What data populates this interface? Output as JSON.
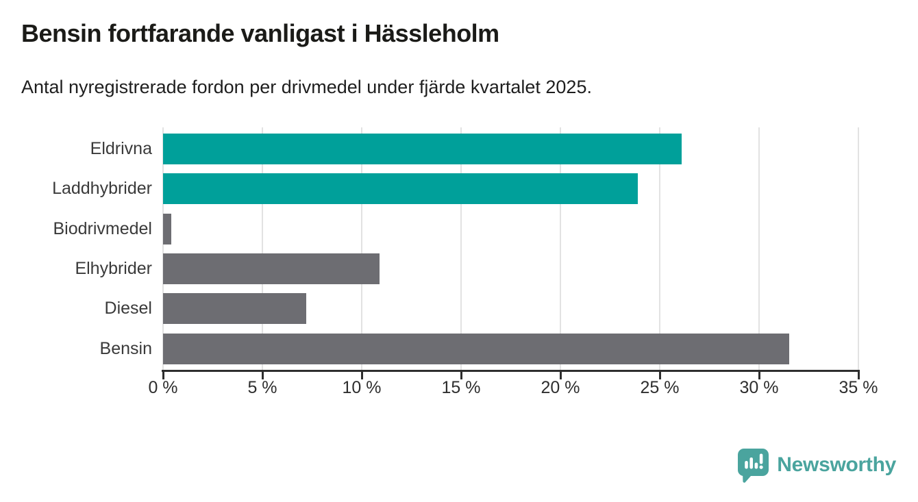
{
  "title": "Bensin fortfarande vanligast i Hässleholm",
  "subtitle": "Antal nyregistrerade fordon per drivmedel under fjärde kvartalet 2025.",
  "chart_data": {
    "type": "bar",
    "orientation": "horizontal",
    "title": "Bensin fortfarande vanligast i Hässleholm",
    "subtitle": "Antal nyregistrerade fordon per drivmedel under fjärde kvartalet 2025.",
    "categories": [
      "Eldrivna",
      "Laddhybrider",
      "Biodrivmedel",
      "Elhybrider",
      "Diesel",
      "Bensin"
    ],
    "values": [
      26.1,
      23.9,
      0.4,
      10.9,
      7.2,
      31.5
    ],
    "unit": "%",
    "xlim": [
      0,
      35
    ],
    "x_ticks": [
      "0 %",
      "5 %",
      "10 %",
      "15 %",
      "20 %",
      "25 %",
      "30 %",
      "35 %"
    ],
    "x_tick_values": [
      0,
      5,
      10,
      15,
      20,
      25,
      30,
      35
    ],
    "bar_colors": [
      "#00a09a",
      "#00a09a",
      "#6d6d72",
      "#6d6d72",
      "#6d6d72",
      "#6d6d72"
    ],
    "grid": true,
    "legend": "none"
  },
  "colors": {
    "teal": "#00a09a",
    "gray": "#6d6d72",
    "gridline": "#e2e2e2",
    "axis": "#2e2e2e",
    "logo": "#4aa49e"
  },
  "branding": {
    "logo_text": "Newsworthy",
    "logo_icon": "newsworthy-speech-bubble-chart-icon"
  }
}
